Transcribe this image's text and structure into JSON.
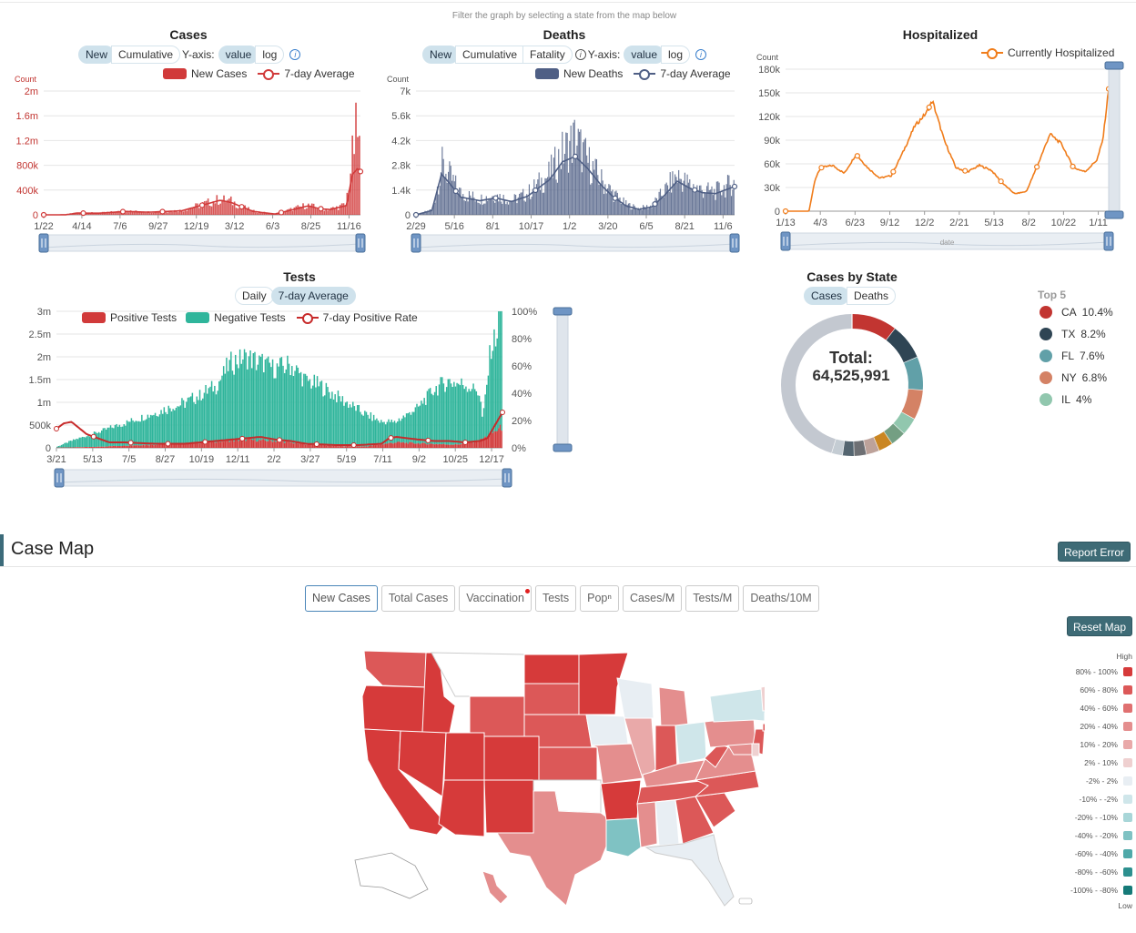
{
  "hint": "Filter the graph by selecting a state from the map below",
  "cases_panel": {
    "title": "Cases",
    "toggle": [
      "New",
      "Cumulative"
    ],
    "yaxis_label": "Y-axis:",
    "yaxis_toggle": [
      "value",
      "log"
    ],
    "legend": [
      "New Cases",
      "7-day Average"
    ],
    "unit": "Count"
  },
  "deaths_panel": {
    "title": "Deaths",
    "toggle": [
      "New",
      "Cumulative",
      "Fatality"
    ],
    "yaxis_label": "Y-axis:",
    "yaxis_toggle": [
      "value",
      "log"
    ],
    "legend": [
      "New Deaths",
      "7-day Average"
    ],
    "unit": "Count"
  },
  "hosp_panel": {
    "title": "Hospitalized",
    "legend": [
      "Currently Hospitalized"
    ],
    "unit": "Count",
    "slider_label": "date"
  },
  "tests_panel": {
    "title": "Tests",
    "toggle": [
      "Daily",
      "7-day Average"
    ],
    "legend": [
      "Positive Tests",
      "Negative Tests",
      "7-day Positive Rate"
    ]
  },
  "state_panel": {
    "title": "Cases by State",
    "toggle": [
      "Cases",
      "Deaths"
    ],
    "total_label": "Total:",
    "total_value": "64,525,991",
    "top5_title": "Top 5",
    "top5": [
      {
        "state": "CA",
        "pct": "10.4%",
        "color": "#c23531"
      },
      {
        "state": "TX",
        "pct": "8.2%",
        "color": "#2f4554"
      },
      {
        "state": "FL",
        "pct": "7.6%",
        "color": "#61a0a8"
      },
      {
        "state": "NY",
        "pct": "6.8%",
        "color": "#d48265"
      },
      {
        "state": "IL",
        "pct": "4%",
        "color": "#91c7ae"
      }
    ]
  },
  "case_map": {
    "title": "Case Map",
    "report_button": "Report Error",
    "reset_button": "Reset Map",
    "tabs": [
      "New Cases",
      "Total Cases",
      "Vaccination",
      "Tests",
      "Popⁿ",
      "Cases/M",
      "Tests/M",
      "Deaths/10M"
    ],
    "legend_high": "High",
    "legend_low": "Low",
    "legend": [
      {
        "label": "80% - 100%",
        "color": "#d63a3a"
      },
      {
        "label": "60% - 80%",
        "color": "#dc5858"
      },
      {
        "label": "40% - 60%",
        "color": "#e07070"
      },
      {
        "label": "20% - 40%",
        "color": "#e48e8e"
      },
      {
        "label": "10% - 20%",
        "color": "#e9a9a9"
      },
      {
        "label": "2% - 10%",
        "color": "#efd0d0"
      },
      {
        "label": "-2% - 2%",
        "color": "#e8eef3"
      },
      {
        "label": "-10% - -2%",
        "color": "#cfe6ea"
      },
      {
        "label": "-20% - -10%",
        "color": "#a8d6d8"
      },
      {
        "label": "-40% - -20%",
        "color": "#7fc2c3"
      },
      {
        "label": "-60% - -40%",
        "color": "#4fa9a9"
      },
      {
        "label": "-80% - -60%",
        "color": "#2d908f"
      },
      {
        "label": "-100% - -80%",
        "color": "#157a78"
      }
    ]
  },
  "chart_data": [
    {
      "id": "cases",
      "type": "bar",
      "title": "Cases",
      "ylabel": "Count",
      "ylim": [
        0,
        2000000
      ],
      "yticks": [
        "0",
        "400k",
        "800k",
        "1.2m",
        "1.6m",
        "2m"
      ],
      "xticks": [
        "1/22",
        "4/14",
        "7/6",
        "9/27",
        "12/19",
        "3/12",
        "6/3",
        "8/25",
        "11/16"
      ],
      "series": [
        {
          "name": "New Cases",
          "color": "#d13a3a",
          "keyframes": [
            [
              0,
              0
            ],
            [
              8,
              1000
            ],
            [
              12,
              32000
            ],
            [
              20,
              30000
            ],
            [
              30,
              60000
            ],
            [
              38,
              45000
            ],
            [
              50,
              70000
            ],
            [
              60,
              200000
            ],
            [
              64,
              250000
            ],
            [
              68,
              220000
            ],
            [
              76,
              60000
            ],
            [
              84,
              15000
            ],
            [
              92,
              110000
            ],
            [
              96,
              160000
            ],
            [
              100,
              110000
            ],
            [
              104,
              90000
            ],
            [
              110,
              160000
            ],
            [
              112,
              800000
            ],
            [
              114,
              1400000
            ],
            [
              115,
              1100000
            ]
          ]
        },
        {
          "name": "7-day Average",
          "color": "#d13a3a",
          "keyframes": [
            [
              0,
              0
            ],
            [
              8,
              1000
            ],
            [
              12,
              28000
            ],
            [
              20,
              26000
            ],
            [
              30,
              55000
            ],
            [
              38,
              42000
            ],
            [
              50,
              65000
            ],
            [
              60,
              185000
            ],
            [
              64,
              235000
            ],
            [
              68,
              200000
            ],
            [
              76,
              55000
            ],
            [
              84,
              13000
            ],
            [
              92,
              100000
            ],
            [
              96,
              145000
            ],
            [
              100,
              100000
            ],
            [
              104,
              85000
            ],
            [
              110,
              150000
            ],
            [
              112,
              650000
            ],
            [
              114,
              750000
            ],
            [
              115,
              700000
            ]
          ]
        }
      ]
    },
    {
      "id": "deaths",
      "type": "bar",
      "title": "Deaths",
      "ylabel": "Count",
      "ylim": [
        0,
        7000
      ],
      "yticks": [
        "0",
        "1.4k",
        "2.8k",
        "4.2k",
        "5.6k",
        "7k"
      ],
      "xticks": [
        "2/29",
        "5/16",
        "8/1",
        "10/17",
        "1/2",
        "3/20",
        "6/5",
        "8/21",
        "11/6"
      ],
      "series": [
        {
          "name": "New Deaths",
          "color": "#4f5f85",
          "keyframes": [
            [
              0,
              0
            ],
            [
              5,
              300
            ],
            [
              8,
              2800
            ],
            [
              10,
              2300
            ],
            [
              14,
              1200
            ],
            [
              20,
              900
            ],
            [
              25,
              1100
            ],
            [
              30,
              800
            ],
            [
              35,
              1200
            ],
            [
              42,
              2300
            ],
            [
              46,
              3500
            ],
            [
              50,
              4300
            ],
            [
              54,
              3000
            ],
            [
              58,
              2000
            ],
            [
              62,
              1200
            ],
            [
              66,
              600
            ],
            [
              70,
              350
            ],
            [
              74,
              500
            ],
            [
              78,
              1300
            ],
            [
              82,
              2200
            ],
            [
              86,
              1700
            ],
            [
              90,
              1400
            ],
            [
              94,
              1300
            ],
            [
              100,
              1800
            ]
          ]
        },
        {
          "name": "7-day Average",
          "color": "#4f5f85",
          "keyframes": [
            [
              0,
              0
            ],
            [
              5,
              250
            ],
            [
              8,
              2300
            ],
            [
              10,
              1900
            ],
            [
              14,
              1000
            ],
            [
              20,
              800
            ],
            [
              25,
              950
            ],
            [
              30,
              750
            ],
            [
              35,
              1050
            ],
            [
              42,
              2000
            ],
            [
              46,
              3000
            ],
            [
              50,
              3300
            ],
            [
              54,
              2600
            ],
            [
              58,
              1700
            ],
            [
              62,
              1000
            ],
            [
              66,
              500
            ],
            [
              70,
              300
            ],
            [
              74,
              450
            ],
            [
              78,
              1100
            ],
            [
              82,
              1900
            ],
            [
              86,
              1500
            ],
            [
              90,
              1250
            ],
            [
              94,
              1200
            ],
            [
              100,
              1600
            ]
          ]
        }
      ]
    },
    {
      "id": "hospitalized",
      "type": "line",
      "title": "Hospitalized",
      "ylabel": "Count",
      "ylim": [
        0,
        180000
      ],
      "yticks": [
        "0",
        "30k",
        "60k",
        "90k",
        "120k",
        "150k",
        "180k"
      ],
      "xticks": [
        "1/13",
        "4/3",
        "6/23",
        "9/12",
        "12/2",
        "2/21",
        "5/13",
        "8/2",
        "10/22",
        "1/11"
      ],
      "series": [
        {
          "name": "Currently Hospitalized",
          "color": "#f07c1a",
          "keyframes": [
            [
              0,
              0
            ],
            [
              8,
              0
            ],
            [
              10,
              40000
            ],
            [
              12,
              55000
            ],
            [
              16,
              58000
            ],
            [
              20,
              48000
            ],
            [
              24,
              72000
            ],
            [
              28,
              55000
            ],
            [
              32,
              42000
            ],
            [
              36,
              45000
            ],
            [
              40,
              75000
            ],
            [
              44,
              108000
            ],
            [
              48,
              125000
            ],
            [
              50,
              140000
            ],
            [
              54,
              90000
            ],
            [
              58,
              55000
            ],
            [
              62,
              50000
            ],
            [
              66,
              58000
            ],
            [
              70,
              52000
            ],
            [
              74,
              35000
            ],
            [
              78,
              22000
            ],
            [
              82,
              25000
            ],
            [
              86,
              60000
            ],
            [
              90,
              98000
            ],
            [
              94,
              85000
            ],
            [
              98,
              55000
            ],
            [
              102,
              50000
            ],
            [
              106,
              65000
            ],
            [
              108,
              90000
            ],
            [
              110,
              155000
            ]
          ]
        }
      ]
    },
    {
      "id": "tests",
      "type": "bar",
      "title": "Tests",
      "ylim": [
        0,
        3000000
      ],
      "yticks": [
        "0",
        "500k",
        "1m",
        "1.5m",
        "2m",
        "2.5m",
        "3m"
      ],
      "y2ticks": [
        "0%",
        "20%",
        "40%",
        "60%",
        "80%",
        "100%"
      ],
      "xticks": [
        "3/21",
        "5/13",
        "7/5",
        "8/27",
        "10/19",
        "12/11",
        "2/2",
        "3/27",
        "5/19",
        "7/11",
        "9/2",
        "10/25",
        "12/17"
      ],
      "series": [
        {
          "name": "Negative Tests",
          "color": "#2fb59b",
          "keyframes": [
            [
              0,
              20000
            ],
            [
              4,
              150000
            ],
            [
              10,
              300000
            ],
            [
              18,
              500000
            ],
            [
              26,
              700000
            ],
            [
              34,
              900000
            ],
            [
              42,
              1200000
            ],
            [
              46,
              1700000
            ],
            [
              50,
              1800000
            ],
            [
              54,
              1700000
            ],
            [
              58,
              1600000
            ],
            [
              62,
              1700000
            ],
            [
              66,
              1400000
            ],
            [
              70,
              1300000
            ],
            [
              74,
              1100000
            ],
            [
              80,
              800000
            ],
            [
              86,
              500000
            ],
            [
              90,
              450000
            ],
            [
              96,
              800000
            ],
            [
              100,
              1200000
            ],
            [
              104,
              1400000
            ],
            [
              108,
              1300000
            ],
            [
              112,
              1100000
            ],
            [
              113,
              400000
            ],
            [
              115,
              1800000
            ],
            [
              117,
              2200000
            ],
            [
              118,
              2900000
            ]
          ]
        },
        {
          "name": "Positive Tests",
          "color": "#d13a3a",
          "keyframes": [
            [
              0,
              5000
            ],
            [
              10,
              20000
            ],
            [
              18,
              50000
            ],
            [
              26,
              70000
            ],
            [
              34,
              90000
            ],
            [
              42,
              140000
            ],
            [
              50,
              180000
            ],
            [
              58,
              150000
            ],
            [
              66,
              80000
            ],
            [
              74,
              40000
            ],
            [
              82,
              30000
            ],
            [
              90,
              120000
            ],
            [
              98,
              90000
            ],
            [
              106,
              70000
            ],
            [
              112,
              150000
            ],
            [
              118,
              450000
            ]
          ]
        },
        {
          "name": "7-day Positive Rate",
          "color": "#c72b2b",
          "keyframes": [
            [
              0,
              14
            ],
            [
              2,
              18
            ],
            [
              4,
              19
            ],
            [
              8,
              10
            ],
            [
              14,
              4
            ],
            [
              18,
              4
            ],
            [
              26,
              3
            ],
            [
              34,
              3
            ],
            [
              42,
              5
            ],
            [
              46,
              6
            ],
            [
              50,
              7
            ],
            [
              54,
              8
            ],
            [
              58,
              6
            ],
            [
              62,
              5
            ],
            [
              66,
              3
            ],
            [
              74,
              2
            ],
            [
              80,
              2
            ],
            [
              86,
              3
            ],
            [
              88,
              7
            ],
            [
              90,
              8
            ],
            [
              96,
              6
            ],
            [
              100,
              5
            ],
            [
              104,
              5
            ],
            [
              108,
              4
            ],
            [
              112,
              5
            ],
            [
              114,
              7
            ],
            [
              118,
              26
            ]
          ]
        }
      ]
    },
    {
      "id": "cases_by_state",
      "type": "pie",
      "title": "Cases by State",
      "slices": [
        {
          "label": "CA",
          "value": 10.4,
          "color": "#c23531"
        },
        {
          "label": "TX",
          "value": 8.2,
          "color": "#2f4554"
        },
        {
          "label": "FL",
          "value": 7.6,
          "color": "#61a0a8"
        },
        {
          "label": "NY",
          "value": 6.8,
          "color": "#d48265"
        },
        {
          "label": "IL",
          "value": 4.0,
          "color": "#91c7ae"
        },
        {
          "label": "",
          "value": 3.5,
          "color": "#749f83"
        },
        {
          "label": "",
          "value": 3.3,
          "color": "#ca8622"
        },
        {
          "label": "",
          "value": 3.0,
          "color": "#bda29a"
        },
        {
          "label": "",
          "value": 2.8,
          "color": "#6e7074"
        },
        {
          "label": "",
          "value": 2.6,
          "color": "#546570"
        },
        {
          "label": "",
          "value": 2.5,
          "color": "#c4ccd3"
        },
        {
          "label": "",
          "value": 45.3,
          "color": "#c3c8d0"
        }
      ]
    }
  ]
}
